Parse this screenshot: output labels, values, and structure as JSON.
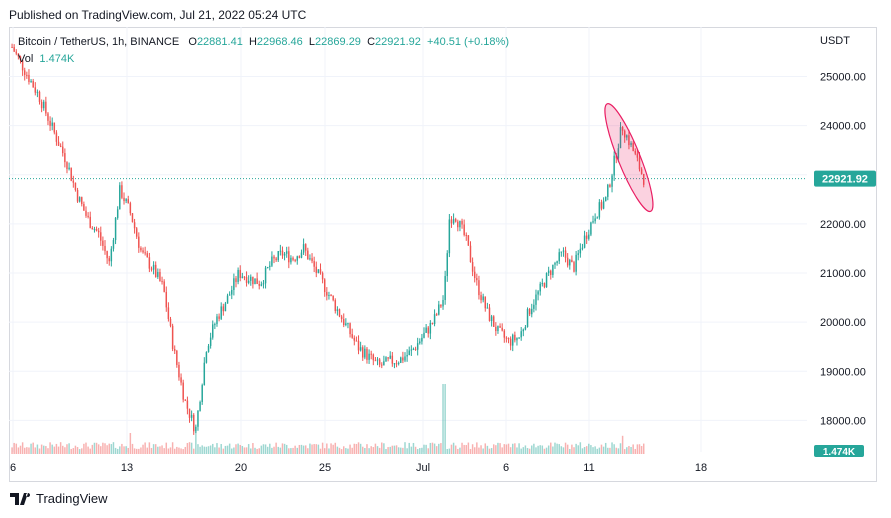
{
  "header": {
    "published": "Published on TradingView.com, Jul 21, 2022 05:24 UTC"
  },
  "legend": {
    "symbol": "Bitcoin / TetherUS, 1h, BINANCE",
    "open_label": "O",
    "open": "22881.41",
    "high_label": "H",
    "high": "22968.46",
    "low_label": "L",
    "low": "22869.29",
    "close_label": "C",
    "close": "22921.92",
    "change": "+40.51 (+0.18%)",
    "vol_label": "Vol",
    "vol_value": "1.474K"
  },
  "price_axis": {
    "unit": "USDT",
    "last_price_tag": "22921.92",
    "last_volume_tag": "1.474K"
  },
  "branding": {
    "name": "TradingView"
  },
  "colors": {
    "up": "#26a69a",
    "down": "#ef5350",
    "highlight": "#e91e63",
    "grid": "#f0f3fa",
    "price_tag": "#26a69a"
  },
  "chart_data": {
    "type": "candlestick",
    "ylim": [
      17500,
      25600
    ],
    "yticks": [
      "25000.00",
      "24000.00",
      "23000.00",
      "22000.00",
      "21000.00",
      "20000.00",
      "19000.00",
      "18000.00"
    ],
    "ytick_values": [
      25000,
      24000,
      23000,
      22000,
      21000,
      20000,
      19000,
      18000
    ],
    "xticks": [
      "6",
      "13",
      "20",
      "25",
      "Jul",
      "6",
      "11",
      "18"
    ],
    "last_price": 22921.92,
    "price_path": [
      [
        0,
        25600
      ],
      [
        5,
        24600
      ],
      [
        8,
        23800
      ],
      [
        10,
        23300
      ],
      [
        12,
        22600
      ],
      [
        14,
        22100
      ],
      [
        16,
        21800
      ],
      [
        18,
        21200
      ],
      [
        20,
        22700
      ],
      [
        22,
        22200
      ],
      [
        24,
        21400
      ],
      [
        26,
        21100
      ],
      [
        28,
        20700
      ],
      [
        30,
        19400
      ],
      [
        32,
        18400
      ],
      [
        34,
        17800
      ],
      [
        36,
        19500
      ],
      [
        38,
        20100
      ],
      [
        40,
        20500
      ],
      [
        42,
        21000
      ],
      [
        44,
        20900
      ],
      [
        46,
        20800
      ],
      [
        48,
        21200
      ],
      [
        50,
        21400
      ],
      [
        52,
        21300
      ],
      [
        54,
        21500
      ],
      [
        56,
        21100
      ],
      [
        58,
        20700
      ],
      [
        60,
        20300
      ],
      [
        62,
        19900
      ],
      [
        64,
        19500
      ],
      [
        66,
        19300
      ],
      [
        68,
        19100
      ],
      [
        70,
        19200
      ],
      [
        72,
        19250
      ],
      [
        74,
        19400
      ],
      [
        76,
        19700
      ],
      [
        78,
        20000
      ],
      [
        80,
        20500
      ],
      [
        81,
        22100
      ],
      [
        82,
        22200
      ],
      [
        84,
        21700
      ],
      [
        86,
        20800
      ],
      [
        88,
        20200
      ],
      [
        90,
        19800
      ],
      [
        92,
        19600
      ],
      [
        94,
        19700
      ],
      [
        96,
        20300
      ],
      [
        98,
        20700
      ],
      [
        100,
        21100
      ],
      [
        102,
        21400
      ],
      [
        104,
        21100
      ],
      [
        106,
        21700
      ],
      [
        108,
        22200
      ],
      [
        110,
        22500
      ],
      [
        112,
        23500
      ],
      [
        113,
        24000
      ],
      [
        115,
        23500
      ],
      [
        117,
        22921.92
      ]
    ],
    "volume_spike_points": [
      [
        22,
        1.5
      ],
      [
        34,
        1.6
      ],
      [
        80,
        5.0
      ],
      [
        113,
        1.3
      ]
    ],
    "highlight": "last rally peak circled (ellipse)"
  }
}
